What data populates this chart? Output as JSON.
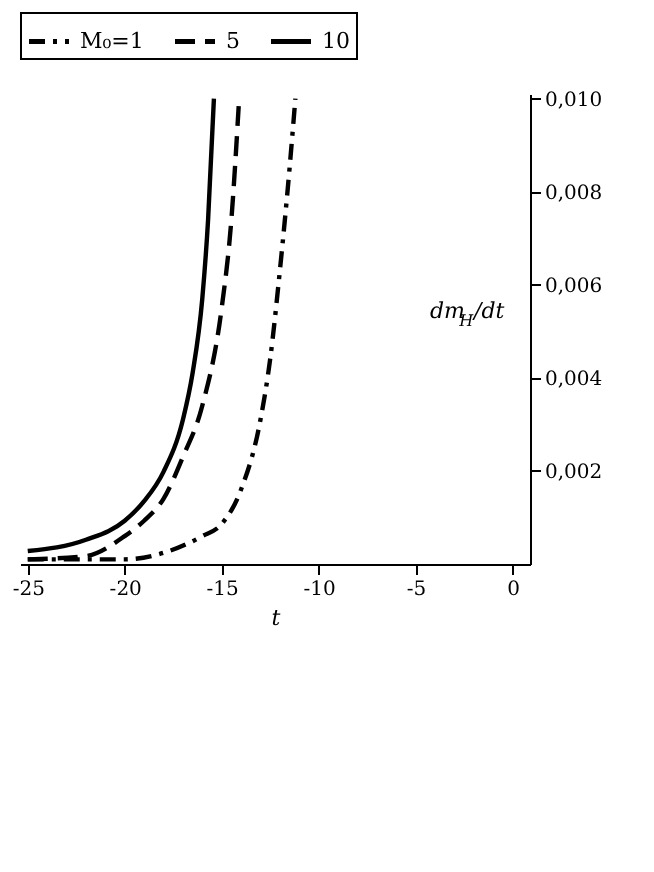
{
  "chart_data": {
    "type": "line",
    "xlabel": "t",
    "ylabel": "dm$_{H}$/dt",
    "xlim": [
      -25.4,
      0.9
    ],
    "ylim": [
      0,
      0.0101
    ],
    "xticks": [
      -25,
      -20,
      -15,
      -10,
      -5,
      0
    ],
    "yticks": [
      {
        "value": 0.002,
        "label": "0,002"
      },
      {
        "value": 0.004,
        "label": "0,004"
      },
      {
        "value": 0.006,
        "label": "0,006"
      },
      {
        "value": 0.008,
        "label": "0,008"
      },
      {
        "value": 0.01,
        "label": "0,010"
      }
    ],
    "legend": "top",
    "grid": false,
    "series": [
      {
        "name": "M₀=1",
        "color": "#000000",
        "line_style": "dashdot",
        "x": [
          -25,
          -22,
          -20,
          -18,
          -16,
          -15,
          -14,
          -13,
          -12.5,
          -12,
          -11.5,
          -11.2
        ],
        "values": [
          0.0001,
          0.0001,
          0.0001,
          0.00024,
          0.0006,
          0.00086,
          0.0016,
          0.0031,
          0.0044,
          0.0063,
          0.0085,
          0.01
        ]
      },
      {
        "name": "5",
        "color": "#000000",
        "line_style": "dashed",
        "x": [
          -25,
          -22,
          -20,
          -19,
          -18,
          -17,
          -16,
          -15,
          -14.5,
          -14.1
        ],
        "values": [
          0.0001,
          0.00017,
          0.0006,
          0.00093,
          0.0014,
          0.0023,
          0.0034,
          0.0055,
          0.0074,
          0.01
        ]
      },
      {
        "name": "10",
        "color": "#000000",
        "line_style": "solid",
        "x": [
          -25,
          -22,
          -20,
          -19,
          -18,
          -17,
          -16.5,
          -16,
          -15.7,
          -15.4
        ],
        "values": [
          0.00028,
          0.00052,
          0.00093,
          0.00135,
          0.00198,
          0.0031,
          0.0041,
          0.0057,
          0.0074,
          0.01
        ]
      }
    ]
  }
}
